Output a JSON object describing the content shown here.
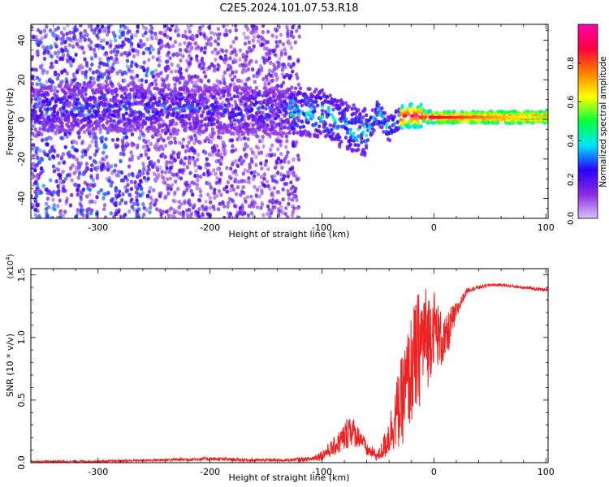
{
  "figure": {
    "title": "C2E5.2024.101.07.53.R18"
  },
  "chart_data": [
    {
      "type": "heatmap",
      "title": "C2E5.2024.101.07.53.R18",
      "xlabel": "Height of straight line (km)",
      "ylabel": "Frequency (Hz)",
      "xlim": [
        -360,
        102
      ],
      "ylim": [
        -50,
        48
      ],
      "x_ticks": [
        -300,
        -200,
        -100,
        0,
        100
      ],
      "y_ticks": [
        -40,
        -20,
        0,
        20,
        40
      ],
      "colorbar": {
        "label": "Normalized spectral amplitude",
        "range": [
          0,
          1
        ],
        "ticks": [
          0.0,
          0.2,
          0.4,
          0.6,
          0.8
        ],
        "colormap": [
          "#d9c2ff",
          "#8a2be2",
          "#2a00ff",
          "#00e5ff",
          "#00ff40",
          "#ffff00",
          "#ff8000",
          "#ff0040",
          "#ff00aa"
        ]
      },
      "ridge": {
        "x": [
          -250,
          -200,
          -150,
          -120,
          -100,
          -80,
          -60,
          -50,
          -40,
          -30,
          -20,
          0,
          20,
          50,
          100
        ],
        "y": [
          6,
          5,
          4,
          4,
          3,
          -3,
          -7,
          4,
          -5,
          1,
          2,
          1,
          1,
          1,
          1
        ]
      }
    },
    {
      "type": "line",
      "xlabel": "Height of straight line (km)",
      "ylabel": "SNR (10 * v/v)",
      "y_multiplier": "(x10",
      "y_multiplier_exp": "4",
      "y_multiplier_close": ")",
      "xlim": [
        -360,
        102
      ],
      "ylim": [
        0,
        1.55
      ],
      "x_ticks": [
        -300,
        -200,
        -100,
        0,
        100
      ],
      "y_ticks": [
        0.0,
        0.5,
        1.0,
        1.5
      ],
      "color": "#ee2222",
      "series": [
        {
          "x": [
            -360,
            -300,
            -250,
            -200,
            -160,
            -130,
            -110,
            -100,
            -90,
            -80,
            -75,
            -70,
            -65,
            -60,
            -55,
            -50,
            -45,
            -40,
            -35,
            -30,
            -25,
            -20,
            -15,
            -10,
            -5,
            0,
            5,
            10,
            15,
            20,
            25,
            30,
            40,
            50,
            60,
            70,
            80,
            90,
            100
          ],
          "values": [
            0.01,
            0.01,
            0.02,
            0.03,
            0.02,
            0.02,
            0.03,
            0.06,
            0.12,
            0.2,
            0.28,
            0.22,
            0.2,
            0.1,
            0.08,
            0.05,
            0.12,
            0.22,
            0.35,
            0.45,
            0.6,
            0.75,
            0.85,
            1.0,
            1.0,
            1.1,
            1.0,
            0.95,
            1.1,
            1.2,
            1.3,
            1.38,
            1.4,
            1.42,
            1.42,
            1.41,
            1.4,
            1.39,
            1.38
          ],
          "noise": [
            0.005,
            0.008,
            0.01,
            0.015,
            0.012,
            0.012,
            0.02,
            0.04,
            0.07,
            0.12,
            0.15,
            0.1,
            0.08,
            0.05,
            0.05,
            0.04,
            0.1,
            0.16,
            0.25,
            0.35,
            0.4,
            0.45,
            0.5,
            0.45,
            0.4,
            0.3,
            0.25,
            0.2,
            0.15,
            0.08,
            0.04,
            0.02,
            0.015,
            0.012,
            0.012,
            0.012,
            0.012,
            0.012,
            0.012
          ]
        }
      ]
    }
  ]
}
